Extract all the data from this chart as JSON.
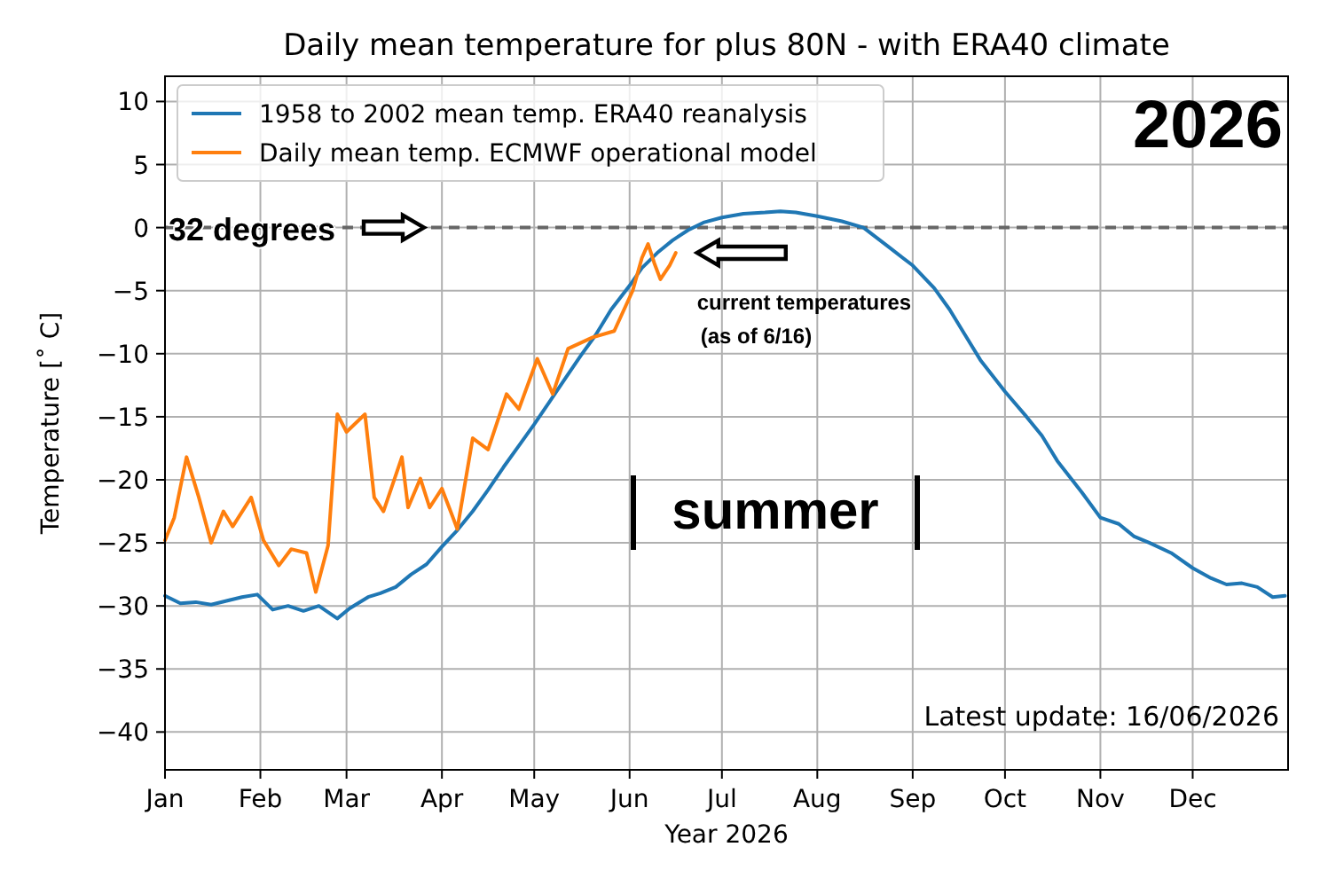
{
  "chart_data": {
    "type": "line",
    "title": "Daily mean temperature for plus 80N - with ERA40 climate",
    "xlabel": "Year 2026",
    "ylabel": "Temperature [˚ C]",
    "xlim": [
      "2026-01-01",
      "2027-01-01"
    ],
    "xticks": [
      {
        "value": "2026-01-01",
        "label": "Jan"
      },
      {
        "value": "2026-02-01",
        "label": "Feb"
      },
      {
        "value": "2026-03-01",
        "label": "Mar"
      },
      {
        "value": "2026-04-01",
        "label": "Apr"
      },
      {
        "value": "2026-05-01",
        "label": "May"
      },
      {
        "value": "2026-06-01",
        "label": "Jun"
      },
      {
        "value": "2026-07-01",
        "label": "Jul"
      },
      {
        "value": "2026-08-01",
        "label": "Aug"
      },
      {
        "value": "2026-09-01",
        "label": "Sep"
      },
      {
        "value": "2026-10-01",
        "label": "Oct"
      },
      {
        "value": "2026-11-01",
        "label": "Nov"
      },
      {
        "value": "2026-12-01",
        "label": "Dec"
      }
    ],
    "ylim": [
      -43,
      12
    ],
    "yticks": [
      -40,
      -35,
      -30,
      -25,
      -20,
      -15,
      -10,
      -5,
      0,
      5,
      10
    ],
    "grid": true,
    "legend": "top left",
    "line_style": "solid",
    "marker": "none",
    "series": [
      {
        "name": "1958 to 2002 mean temp. ERA40 reanalysis",
        "color": "#1f77b4",
        "x": [
          "2026-01-01",
          "2026-01-06",
          "2026-01-11",
          "2026-01-16",
          "2026-01-21",
          "2026-01-26",
          "2026-01-31",
          "2026-02-05",
          "2026-02-10",
          "2026-02-15",
          "2026-02-20",
          "2026-02-26",
          "2026-03-02",
          "2026-03-08",
          "2026-03-12",
          "2026-03-17",
          "2026-03-22",
          "2026-03-27",
          "2026-04-01",
          "2026-04-06",
          "2026-04-11",
          "2026-04-16",
          "2026-04-21",
          "2026-04-26",
          "2026-05-01",
          "2026-05-06",
          "2026-05-11",
          "2026-05-16",
          "2026-05-21",
          "2026-05-26",
          "2026-06-01",
          "2026-06-05",
          "2026-06-10",
          "2026-06-15",
          "2026-06-20",
          "2026-06-25",
          "2026-07-01",
          "2026-07-08",
          "2026-07-15",
          "2026-07-20",
          "2026-07-25",
          "2026-08-01",
          "2026-08-09",
          "2026-08-16",
          "2026-08-24",
          "2026-09-01",
          "2026-09-08",
          "2026-09-13",
          "2026-09-18",
          "2026-09-23",
          "2026-10-01",
          "2026-10-08",
          "2026-10-13",
          "2026-10-18",
          "2026-10-26",
          "2026-11-01",
          "2026-11-07",
          "2026-11-12",
          "2026-11-17",
          "2026-11-24",
          "2026-12-01",
          "2026-12-07",
          "2026-12-12",
          "2026-12-17",
          "2026-12-22",
          "2026-12-27",
          "2026-12-31"
        ],
        "values": [
          -29.2,
          -29.8,
          -29.7,
          -29.9,
          -29.6,
          -29.3,
          -29.1,
          -30.3,
          -30,
          -30.4,
          -30,
          -31,
          -30.2,
          -29.3,
          -29,
          -28.5,
          -27.5,
          -26.7,
          -25.3,
          -24,
          -22.5,
          -20.8,
          -19,
          -17.3,
          -15.6,
          -13.8,
          -12,
          -10.2,
          -8.5,
          -6.5,
          -4.6,
          -3.2,
          -2,
          -1,
          -0.2,
          0.4,
          0.8,
          1.1,
          1.2,
          1.3,
          1.2,
          0.9,
          0.5,
          0,
          -1.5,
          -3,
          -4.8,
          -6.5,
          -8.5,
          -10.5,
          -13,
          -15,
          -16.5,
          -18.5,
          -21,
          -23,
          -23.5,
          -24.5,
          -25,
          -25.8,
          -27,
          -27.8,
          -28.3,
          -28.2,
          -28.5,
          -29.3,
          -29.2
        ]
      },
      {
        "name": "Daily mean temp. ECMWF operational model",
        "color": "#ff7f0e",
        "x": [
          "2026-01-01",
          "2026-01-04",
          "2026-01-08",
          "2026-01-12",
          "2026-01-16",
          "2026-01-20",
          "2026-01-23",
          "2026-01-29",
          "2026-02-02",
          "2026-02-07",
          "2026-02-11",
          "2026-02-16",
          "2026-02-19",
          "2026-02-23",
          "2026-02-26",
          "2026-03-01",
          "2026-03-07",
          "2026-03-10",
          "2026-03-13",
          "2026-03-19",
          "2026-03-21",
          "2026-03-25",
          "2026-03-28",
          "2026-04-01",
          "2026-04-06",
          "2026-04-11",
          "2026-04-16",
          "2026-04-22",
          "2026-04-26",
          "2026-05-02",
          "2026-05-07",
          "2026-05-12",
          "2026-05-20",
          "2026-05-27",
          "2026-06-02",
          "2026-06-05",
          "2026-06-07",
          "2026-06-09",
          "2026-06-11",
          "2026-06-14",
          "2026-06-16"
        ],
        "values": [
          -24.8,
          -23,
          -18.2,
          -21.4,
          -25,
          -22.5,
          -23.7,
          -21.4,
          -24.8,
          -26.8,
          -25.5,
          -25.8,
          -28.9,
          -25.2,
          -14.8,
          -16.2,
          -14.8,
          -21.4,
          -22.5,
          -18.2,
          -22.2,
          -19.9,
          -22.2,
          -20.7,
          -23.9,
          -16.7,
          -17.6,
          -13.2,
          -14.4,
          -10.4,
          -13.2,
          -9.6,
          -8.7,
          -8.2,
          -5,
          -2.4,
          -1.3,
          -2.8,
          -4.1,
          -3,
          -2
        ]
      }
    ],
    "ref_lines": [
      {
        "axis": "y",
        "value": 0,
        "label": "32 degrees",
        "color": "#666666",
        "line_style": "dashed"
      }
    ],
    "annotations": [
      {
        "text": "current temperatures\n(as of 6/16)",
        "x": "2026-06-16",
        "y": -2
      },
      "summer",
      "2026",
      "Latest update: 16/06/2026"
    ]
  }
}
